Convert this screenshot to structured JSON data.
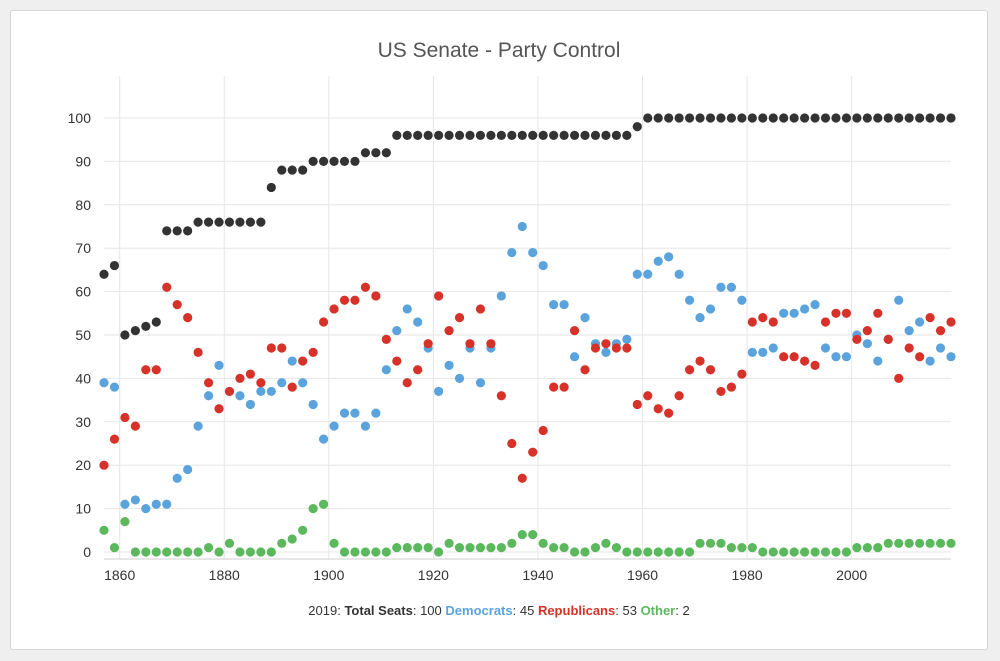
{
  "chart_data": {
    "type": "scatter",
    "title": "US Senate - Party Control",
    "xlabel": "",
    "ylabel": "",
    "xlim": [
      1857,
      2019
    ],
    "ylim": [
      0,
      100
    ],
    "x_ticks": [
      1860,
      1880,
      1900,
      1920,
      1940,
      1960,
      1980,
      2000
    ],
    "y_ticks": [
      0,
      10,
      20,
      30,
      40,
      50,
      60,
      70,
      80,
      90,
      100
    ],
    "grid": true,
    "x": [
      1857,
      1859,
      1861,
      1863,
      1865,
      1867,
      1869,
      1871,
      1873,
      1875,
      1877,
      1879,
      1881,
      1883,
      1885,
      1887,
      1889,
      1891,
      1893,
      1895,
      1897,
      1899,
      1901,
      1903,
      1905,
      1907,
      1909,
      1911,
      1913,
      1915,
      1917,
      1919,
      1921,
      1923,
      1925,
      1927,
      1929,
      1931,
      1933,
      1935,
      1937,
      1939,
      1941,
      1943,
      1945,
      1947,
      1949,
      1951,
      1953,
      1955,
      1957,
      1959,
      1961,
      1963,
      1965,
      1967,
      1969,
      1971,
      1973,
      1975,
      1977,
      1979,
      1981,
      1983,
      1985,
      1987,
      1989,
      1991,
      1993,
      1995,
      1997,
      1999,
      2001,
      2003,
      2005,
      2007,
      2009,
      2011,
      2013,
      2015,
      2017,
      2019
    ],
    "series": [
      {
        "name": "Total Seats",
        "color": "#333333",
        "values": [
          64,
          66,
          50,
          51,
          52,
          53,
          74,
          74,
          74,
          76,
          76,
          76,
          76,
          76,
          76,
          76,
          84,
          88,
          88,
          88,
          90,
          90,
          90,
          90,
          90,
          92,
          92,
          92,
          96,
          96,
          96,
          96,
          96,
          96,
          96,
          96,
          96,
          96,
          96,
          96,
          96,
          96,
          96,
          96,
          96,
          96,
          96,
          96,
          96,
          96,
          96,
          98,
          100,
          100,
          100,
          100,
          100,
          100,
          100,
          100,
          100,
          100,
          100,
          100,
          100,
          100,
          100,
          100,
          100,
          100,
          100,
          100,
          100,
          100,
          100,
          100,
          100,
          100,
          100,
          100,
          100,
          100
        ]
      },
      {
        "name": "Democrats",
        "color": "#5ba3dc",
        "values": [
          39,
          38,
          11,
          12,
          10,
          11,
          11,
          17,
          19,
          29,
          36,
          43,
          37,
          36,
          34,
          37,
          37,
          39,
          44,
          39,
          34,
          26,
          29,
          32,
          32,
          29,
          32,
          42,
          51,
          56,
          53,
          47,
          37,
          43,
          40,
          47,
          39,
          47,
          59,
          69,
          75,
          69,
          66,
          57,
          57,
          45,
          54,
          48,
          46,
          48,
          49,
          64,
          64,
          67,
          68,
          64,
          58,
          54,
          56,
          61,
          61,
          58,
          46,
          46,
          47,
          55,
          55,
          56,
          57,
          47,
          45,
          45,
          50,
          48,
          44,
          49,
          58,
          51,
          53,
          44,
          47,
          45
        ]
      },
      {
        "name": "Republicans",
        "color": "#d6322a",
        "values": [
          20,
          26,
          31,
          29,
          42,
          42,
          61,
          57,
          54,
          46,
          39,
          33,
          37,
          40,
          41,
          39,
          47,
          47,
          38,
          44,
          46,
          53,
          56,
          58,
          58,
          61,
          59,
          49,
          44,
          39,
          42,
          48,
          59,
          51,
          54,
          48,
          56,
          48,
          36,
          25,
          17,
          23,
          28,
          38,
          38,
          51,
          42,
          47,
          48,
          47,
          47,
          34,
          36,
          33,
          32,
          36,
          42,
          44,
          42,
          37,
          38,
          41,
          53,
          54,
          53,
          45,
          45,
          44,
          43,
          53,
          55,
          55,
          49,
          51,
          55,
          49,
          40,
          47,
          45,
          54,
          51,
          53
        ]
      },
      {
        "name": "Other",
        "color": "#5cb85c",
        "values": [
          5,
          1,
          7,
          0,
          0,
          0,
          0,
          0,
          0,
          0,
          1,
          0,
          2,
          0,
          0,
          0,
          0,
          2,
          3,
          5,
          10,
          11,
          2,
          0,
          0,
          0,
          0,
          0,
          1,
          1,
          1,
          1,
          0,
          2,
          1,
          1,
          1,
          1,
          1,
          2,
          4,
          4,
          2,
          1,
          1,
          0,
          0,
          1,
          2,
          1,
          0,
          0,
          0,
          0,
          0,
          0,
          0,
          2,
          2,
          2,
          1,
          1,
          1,
          0,
          0,
          0,
          0,
          0,
          0,
          0,
          0,
          0,
          1,
          1,
          1,
          2,
          2,
          2,
          2,
          2,
          2,
          2
        ]
      }
    ]
  },
  "footer": {
    "year": "2019",
    "total_label": "Total Seats",
    "total_value": "100",
    "dem_label": "Democrats",
    "dem_value": "45",
    "rep_label": "Republicans",
    "rep_value": "53",
    "oth_label": "Other",
    "oth_value": "2"
  }
}
